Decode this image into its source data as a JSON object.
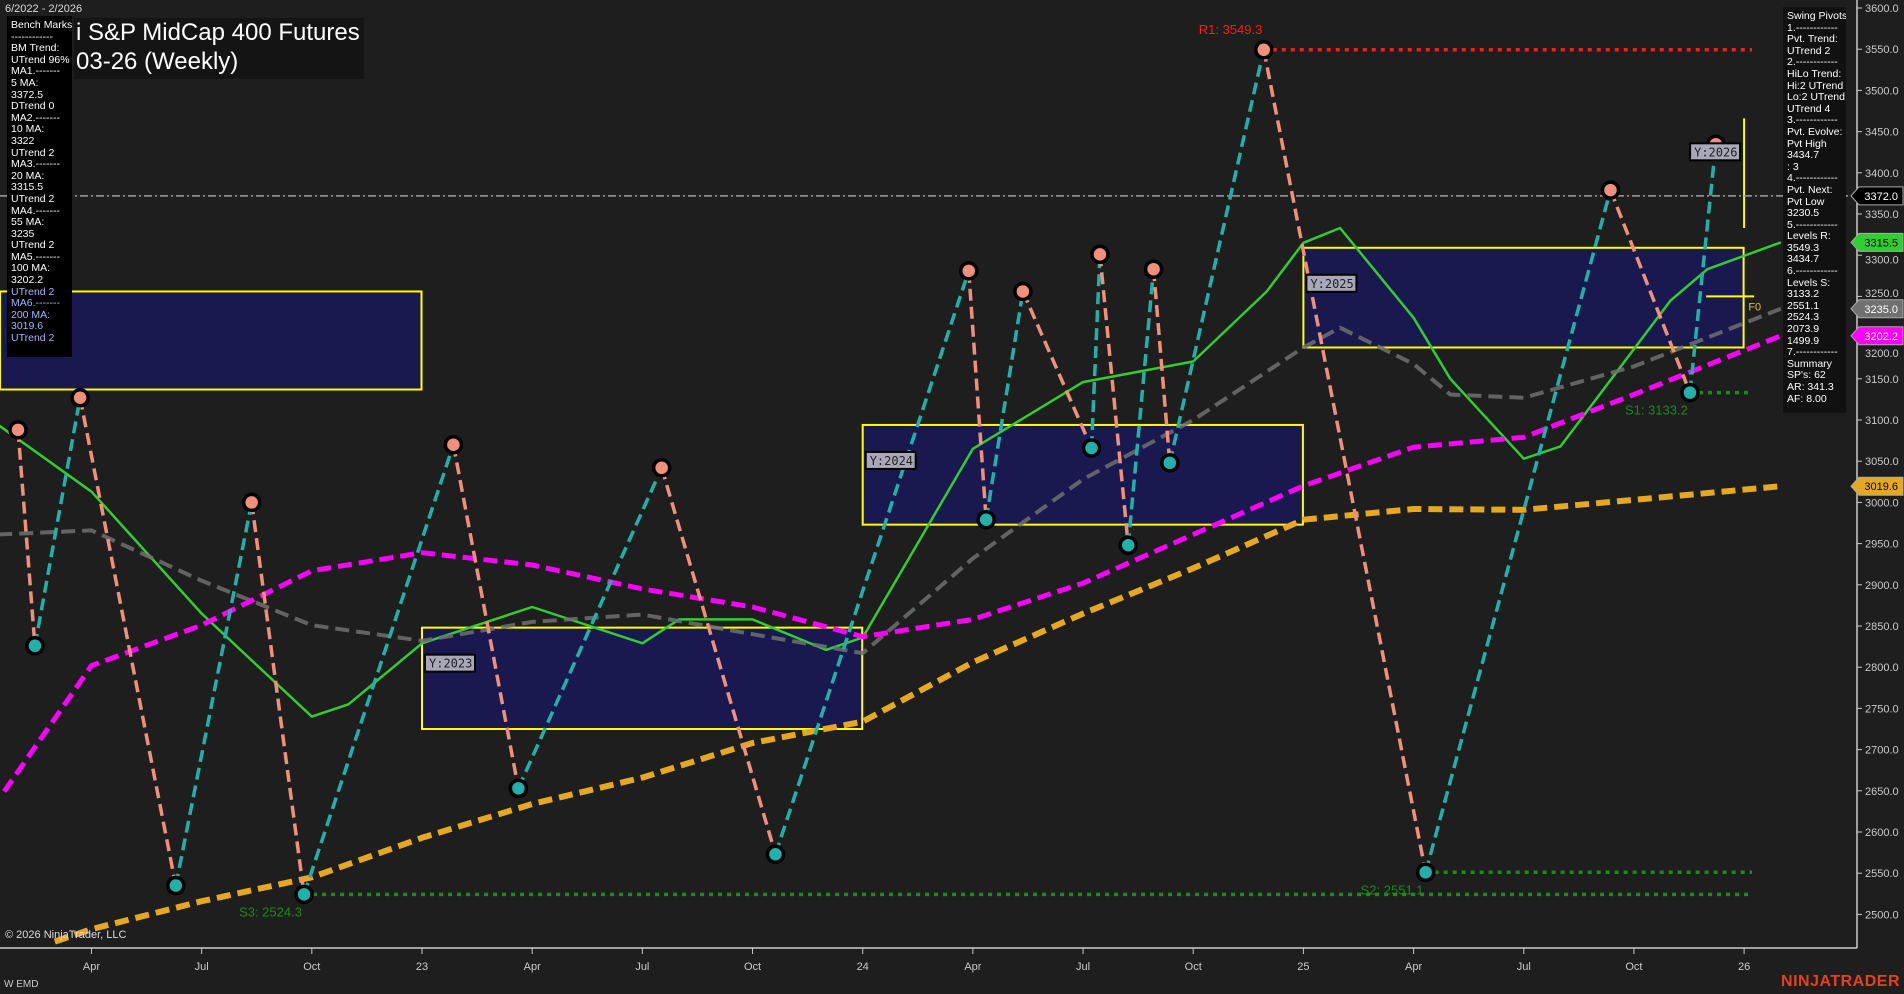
{
  "header": {
    "date_range": "6/2022 - 2/2026",
    "title_line1": "i S&P MidCap 400 Futures",
    "title_line2": "03-26 (Weekly)"
  },
  "benchmarks_panel": {
    "lines": [
      "Bench Marks",
      "------------",
      "BM Trend:",
      "UTrend 96%",
      "MA1.-------",
      "5 MA:",
      "3372.5",
      "DTrend 0",
      "MA2.-------",
      "10 MA:",
      "3322",
      "UTrend 2",
      "MA3.-------",
      "20 MA:",
      "3315.5",
      "UTrend 2",
      "MA4.-------",
      "55 MA:",
      "3235",
      "UTrend 2",
      "MA5.-------",
      "100 MA:",
      "3202.2",
      "UTrend 2",
      "MA6.-------",
      "200 MA:",
      "3019.6",
      "UTrend 2"
    ]
  },
  "swing_pivots_panel": {
    "lines": [
      "Swing Pivots",
      "1.------------",
      "Pvt. Trend:",
      "UTrend 2",
      "2.------------",
      "HiLo Trend:",
      "Hi:2 UTrend",
      "Lo:2 UTrend",
      "UTrend 4",
      "3.------------",
      "Pvt. Evolve:",
      "Pvt High",
      "3434.7",
      ": 3",
      "4.------------",
      "Pvt. Next:",
      "Pvt Low",
      "3230.5",
      "5.------------",
      "Levels R:",
      "3549.3",
      "3434.7",
      "6.------------",
      "Levels S:",
      "3133.2",
      "2551.1",
      "2524.3",
      "2073.9",
      "1499.9",
      "7.------------",
      "Summary",
      "SP's: 62",
      "AR: 341.3",
      "AF: 8.00"
    ]
  },
  "footer": {
    "copyright": "© 2026 NinjaTrader, LLC",
    "instrument": "W EMD",
    "brand": "NINJATRADER"
  },
  "chart_data": {
    "type": "line",
    "subtype": "weekly price chart with swing pivots, moving averages and yearly range boxes",
    "grid": false,
    "y_axis": {
      "side": "right",
      "range": [
        2460,
        3610
      ],
      "ticks": [
        2500,
        2550,
        2600,
        2650,
        2700,
        2750,
        2800,
        2850,
        2900,
        2950,
        3000,
        3050,
        3100,
        3150,
        3200,
        3250,
        3300,
        3350,
        3400,
        3450,
        3500,
        3550,
        3600
      ]
    },
    "x_axis": {
      "range": [
        "2022-01-10",
        "2026-03-01"
      ],
      "ticks": [
        {
          "label": "Apr",
          "date": "2022-04-01"
        },
        {
          "label": "Jul",
          "date": "2022-07-01"
        },
        {
          "label": "Oct",
          "date": "2022-10-01"
        },
        {
          "label": "23",
          "date": "2023-01-01"
        },
        {
          "label": "Apr",
          "date": "2023-04-01"
        },
        {
          "label": "Jul",
          "date": "2023-07-01"
        },
        {
          "label": "Oct",
          "date": "2023-10-01"
        },
        {
          "label": "24",
          "date": "2024-01-01"
        },
        {
          "label": "Apr",
          "date": "2024-04-01"
        },
        {
          "label": "Jul",
          "date": "2024-07-01"
        },
        {
          "label": "Oct",
          "date": "2024-10-01"
        },
        {
          "label": "25",
          "date": "2025-01-01"
        },
        {
          "label": "Apr",
          "date": "2025-04-01"
        },
        {
          "label": "Jul",
          "date": "2025-07-01"
        },
        {
          "label": "Oct",
          "date": "2025-10-01"
        },
        {
          "label": "26",
          "date": "2026-01-01"
        }
      ]
    },
    "colors": {
      "background": "#1e1e1e",
      "pivot_up": "#20b2aa",
      "pivot_down": "#f0907a",
      "resistance": "#ff1a1a",
      "support": "#1a8c1a",
      "box_fill": "#191950",
      "box_stroke": "#ffff00",
      "last_price": "#a0a0a0"
    },
    "swing_pivots": [
      {
        "date": "2022-02-01",
        "price": 3088,
        "type": "high"
      },
      {
        "date": "2022-02-15",
        "price": 2826,
        "type": "low"
      },
      {
        "date": "2022-03-22",
        "price": 3127,
        "type": "high"
      },
      {
        "date": "2022-06-10",
        "price": 2535,
        "type": "low"
      },
      {
        "date": "2022-08-12",
        "price": 3000,
        "type": "high"
      },
      {
        "date": "2022-09-25",
        "price": 2524.3,
        "type": "low"
      },
      {
        "date": "2023-01-27",
        "price": 3070,
        "type": "high"
      },
      {
        "date": "2023-03-20",
        "price": 2653,
        "type": "low"
      },
      {
        "date": "2023-07-17",
        "price": 3042,
        "type": "high"
      },
      {
        "date": "2023-10-20",
        "price": 2573,
        "type": "low"
      },
      {
        "date": "2024-03-28",
        "price": 3281,
        "type": "high"
      },
      {
        "date": "2024-04-12",
        "price": 2979,
        "type": "low"
      },
      {
        "date": "2024-05-12",
        "price": 3256,
        "type": "high"
      },
      {
        "date": "2024-07-08",
        "price": 3066,
        "type": "low"
      },
      {
        "date": "2024-07-15",
        "price": 3301,
        "type": "high"
      },
      {
        "date": "2024-08-08",
        "price": 2948,
        "type": "low"
      },
      {
        "date": "2024-08-29",
        "price": 3283,
        "type": "high"
      },
      {
        "date": "2024-09-12",
        "price": 3048,
        "type": "low"
      },
      {
        "date": "2024-11-29",
        "price": 3549.3,
        "type": "high"
      },
      {
        "date": "2025-04-11",
        "price": 2551.1,
        "type": "low"
      },
      {
        "date": "2025-09-12",
        "price": 3379,
        "type": "high"
      },
      {
        "date": "2025-11-17",
        "price": 3133.2,
        "type": "low"
      },
      {
        "date": "2025-12-08",
        "price": 3434.7,
        "type": "high"
      }
    ],
    "levels": [
      {
        "label": "R1: 3549.3",
        "price": 3549.3,
        "from": "2024-11-29",
        "kind": "resistance"
      },
      {
        "label": "S1: 3133.2",
        "price": 3133.2,
        "from": "2025-11-17",
        "kind": "support"
      },
      {
        "label": "S2: 2551.1",
        "price": 2551.1,
        "from": "2025-04-11",
        "kind": "support"
      },
      {
        "label": "S3: 2524.3",
        "price": 2524.3,
        "from": "2022-09-25",
        "kind": "support"
      }
    ],
    "last_price": 3372.0,
    "moving_averages": [
      {
        "name": "20 MA",
        "color": "#33cc33",
        "style": "solid",
        "value_tag": "3315.5",
        "points": [
          [
            "2022-01-15",
            3094
          ],
          [
            "2022-04-01",
            3013
          ],
          [
            "2022-07-01",
            2865
          ],
          [
            "2022-10-01",
            2740
          ],
          [
            "2022-11-01",
            2755
          ],
          [
            "2023-01-01",
            2829
          ],
          [
            "2023-04-01",
            2873
          ],
          [
            "2023-07-01",
            2829
          ],
          [
            "2023-08-01",
            2858
          ],
          [
            "2023-10-01",
            2858
          ],
          [
            "2023-12-01",
            2821
          ],
          [
            "2024-01-01",
            2836
          ],
          [
            "2024-04-01",
            3065
          ],
          [
            "2024-07-01",
            3146
          ],
          [
            "2024-10-01",
            3171
          ],
          [
            "2024-12-01",
            3256
          ],
          [
            "2025-01-01",
            3315
          ],
          [
            "2025-02-01",
            3333
          ],
          [
            "2025-04-01",
            3224
          ],
          [
            "2025-05-01",
            3150
          ],
          [
            "2025-07-01",
            3053
          ],
          [
            "2025-08-01",
            3068
          ],
          [
            "2025-10-01",
            3186
          ],
          [
            "2025-11-01",
            3245
          ],
          [
            "2025-12-01",
            3283
          ],
          [
            "2026-02-01",
            3315.5
          ]
        ]
      },
      {
        "name": "55 MA",
        "color": "#707070",
        "style": "dashed",
        "value_tag": "3235.0",
        "points": [
          [
            "2022-01-15",
            2961
          ],
          [
            "2022-04-01",
            2966
          ],
          [
            "2022-07-01",
            2905
          ],
          [
            "2022-10-01",
            2851
          ],
          [
            "2023-01-01",
            2832
          ],
          [
            "2023-04-01",
            2855
          ],
          [
            "2023-07-01",
            2864
          ],
          [
            "2023-10-01",
            2840
          ],
          [
            "2024-01-01",
            2817
          ],
          [
            "2024-04-01",
            2932
          ],
          [
            "2024-07-01",
            3028
          ],
          [
            "2024-10-01",
            3100
          ],
          [
            "2025-01-01",
            3188
          ],
          [
            "2025-02-01",
            3212
          ],
          [
            "2025-04-01",
            3168
          ],
          [
            "2025-05-01",
            3131
          ],
          [
            "2025-07-01",
            3127
          ],
          [
            "2025-10-01",
            3165
          ],
          [
            "2026-02-01",
            3235
          ]
        ]
      },
      {
        "name": "100 MA",
        "color": "#ff00ff",
        "style": "dashed",
        "value_tag": "3202.2",
        "points": [
          [
            "2022-01-20",
            2649
          ],
          [
            "2022-04-01",
            2802
          ],
          [
            "2022-07-01",
            2851
          ],
          [
            "2022-10-01",
            2917
          ],
          [
            "2023-01-01",
            2939
          ],
          [
            "2023-04-01",
            2924
          ],
          [
            "2023-07-01",
            2895
          ],
          [
            "2023-10-01",
            2873
          ],
          [
            "2024-01-01",
            2837
          ],
          [
            "2024-04-01",
            2858
          ],
          [
            "2024-07-01",
            2902
          ],
          [
            "2024-10-01",
            2961
          ],
          [
            "2025-01-01",
            3020
          ],
          [
            "2025-04-01",
            3067
          ],
          [
            "2025-07-01",
            3079
          ],
          [
            "2025-10-01",
            3131
          ],
          [
            "2026-02-01",
            3202.2
          ]
        ]
      },
      {
        "name": "200 MA",
        "color": "#e6a820",
        "style": "dashed",
        "value_tag": "3019.6",
        "points": [
          [
            "2022-03-01",
            2467
          ],
          [
            "2022-04-01",
            2482
          ],
          [
            "2022-07-01",
            2516
          ],
          [
            "2022-10-01",
            2545
          ],
          [
            "2023-01-01",
            2593
          ],
          [
            "2023-04-01",
            2634
          ],
          [
            "2023-07-01",
            2666
          ],
          [
            "2023-10-01",
            2708
          ],
          [
            "2024-01-01",
            2734
          ],
          [
            "2024-04-01",
            2806
          ],
          [
            "2024-07-01",
            2865
          ],
          [
            "2024-10-01",
            2920
          ],
          [
            "2025-01-01",
            2979
          ],
          [
            "2025-04-01",
            2992
          ],
          [
            "2025-07-01",
            2991
          ],
          [
            "2025-10-01",
            3003
          ],
          [
            "2026-02-01",
            3019.6
          ]
        ]
      }
    ],
    "value_tags": [
      {
        "label": "3372.0",
        "price": 3372.0,
        "bg": "#000000",
        "fg": "#ffffff"
      },
      {
        "label": "3315.5",
        "price": 3315.5,
        "bg": "#33cc33",
        "fg": "#000000"
      },
      {
        "label": "3235.0",
        "price": 3235.0,
        "bg": "#707070",
        "fg": "#ffffff"
      },
      {
        "label": "3202.2",
        "price": 3202.2,
        "bg": "#ff00ff",
        "fg": "#ffffff"
      },
      {
        "label": "3019.6",
        "price": 3019.6,
        "bg": "#e6a820",
        "fg": "#000000"
      }
    ],
    "year_boxes": [
      {
        "label": "",
        "start": "2022-01-01",
        "end": "2022-12-31",
        "high": 3256,
        "low": 3137
      },
      {
        "label": "Y:2023",
        "start": "2023-01-01",
        "end": "2023-12-31",
        "high": 2848,
        "low": 2725
      },
      {
        "label": "Y:2024",
        "start": "2024-01-01",
        "end": "2024-12-31",
        "high": 3094,
        "low": 2973
      },
      {
        "label": "Y:2025",
        "start": "2025-01-01",
        "end": "2025-12-31",
        "high": 3309,
        "low": 3188
      },
      {
        "label": "Y:2026",
        "start": "2026-01-01",
        "end": "2026-01-01",
        "high": 3466,
        "low": 3333
      }
    ],
    "annotations": [
      {
        "label": "F0",
        "date": "2025-12-20",
        "price": 3250
      }
    ]
  }
}
